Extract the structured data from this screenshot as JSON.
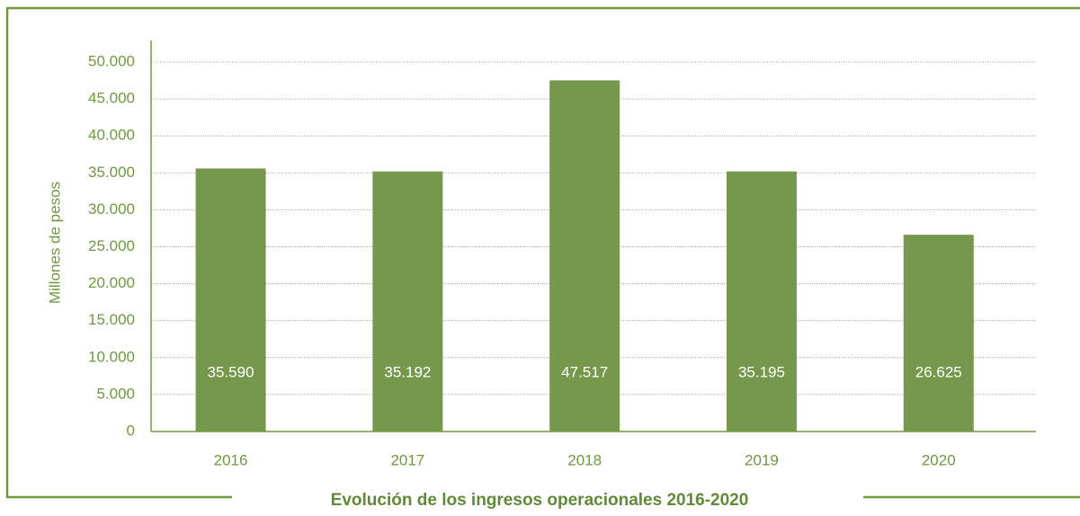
{
  "chart_data": {
    "type": "bar",
    "title": "Evolución de los ingresos operacionales 2016-2020",
    "y_label": "Millones de pesos",
    "categories": [
      "2016",
      "2017",
      "2018",
      "2019",
      "2020"
    ],
    "values": [
      35590,
      35192,
      47517,
      35195,
      26625
    ],
    "value_labels": [
      "35.590",
      "35.192",
      "47.517",
      "35.195",
      "26.625"
    ],
    "color": "#76984c",
    "ylim": [
      0,
      50000
    ],
    "yticks": [
      0,
      {
        "value": 5000,
        "label": "5.000"
      },
      {
        "value": 10000,
        "label": "10.000"
      },
      {
        "value": 15000,
        "label": "15.000"
      },
      {
        "value": 20000,
        "label": "20.000"
      },
      {
        "value": 25000,
        "label": "25.000"
      },
      {
        "value": 30000,
        "label": "30.000"
      },
      {
        "value": 35000,
        "label": "35.000"
      },
      {
        "value": 40000,
        "label": "40.000"
      },
      {
        "value": 45000,
        "label": "45.000"
      },
      {
        "value": 50000,
        "label": "50.000"
      }
    ],
    "grid": true
  }
}
